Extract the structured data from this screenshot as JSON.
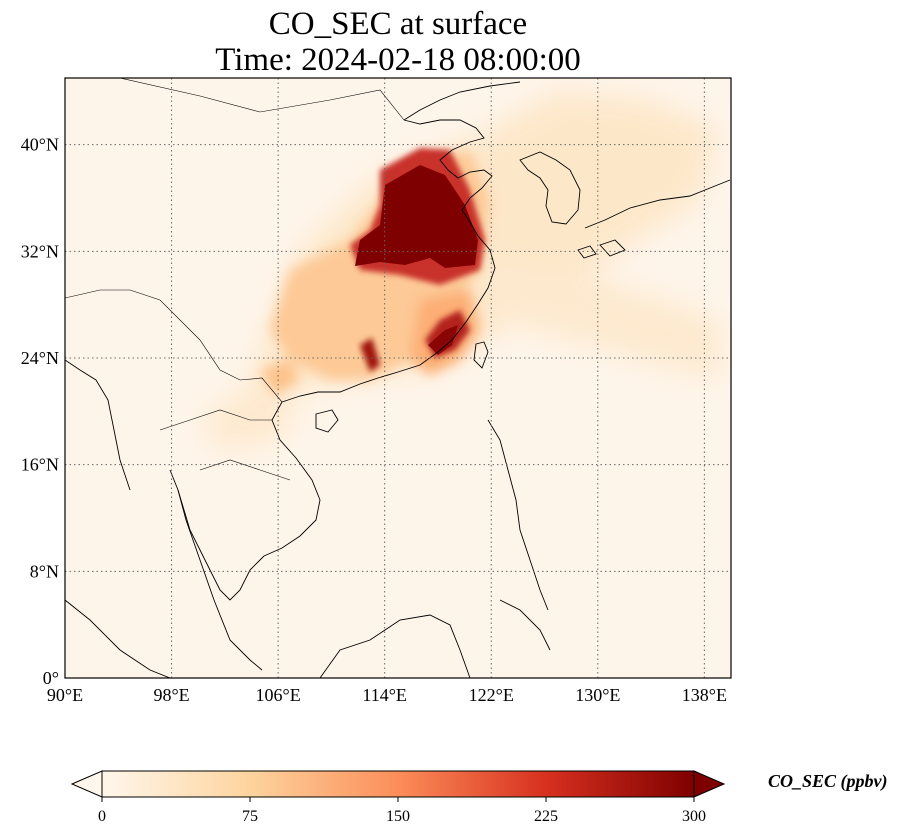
{
  "title": {
    "line1": "CO_SEC at surface",
    "line2": "Time: 2024-02-18 08:00:00"
  },
  "map": {
    "extent": {
      "lon": [
        90,
        140
      ],
      "lat": [
        0,
        45
      ]
    },
    "lon_ticks": [
      {
        "value": 90,
        "label": "90°E"
      },
      {
        "value": 98,
        "label": "98°E"
      },
      {
        "value": 106,
        "label": "106°E"
      },
      {
        "value": 114,
        "label": "114°E"
      },
      {
        "value": 122,
        "label": "122°E"
      },
      {
        "value": 130,
        "label": "130°E"
      },
      {
        "value": 138,
        "label": "138°E"
      }
    ],
    "lat_ticks": [
      {
        "value": 0,
        "label": "0°"
      },
      {
        "value": 8,
        "label": "8°N"
      },
      {
        "value": 16,
        "label": "16°N"
      },
      {
        "value": 24,
        "label": "24°N"
      },
      {
        "value": 32,
        "label": "32°N"
      },
      {
        "value": 40,
        "label": "40°N"
      }
    ],
    "gridlines": true,
    "colormap": "OrRd"
  },
  "colorbar": {
    "label": "CO_SEC (ppbv)",
    "range": [
      0,
      300
    ],
    "extend": "both",
    "ticks": [
      {
        "value": 0,
        "label": "0"
      },
      {
        "value": 75,
        "label": "75"
      },
      {
        "value": 150,
        "label": "150"
      },
      {
        "value": 225,
        "label": "225"
      },
      {
        "value": 300,
        "label": "300"
      }
    ],
    "colors": [
      "#fff7ec",
      "#fdd49e",
      "#fc8d59",
      "#d7301f",
      "#7f0000"
    ]
  }
}
